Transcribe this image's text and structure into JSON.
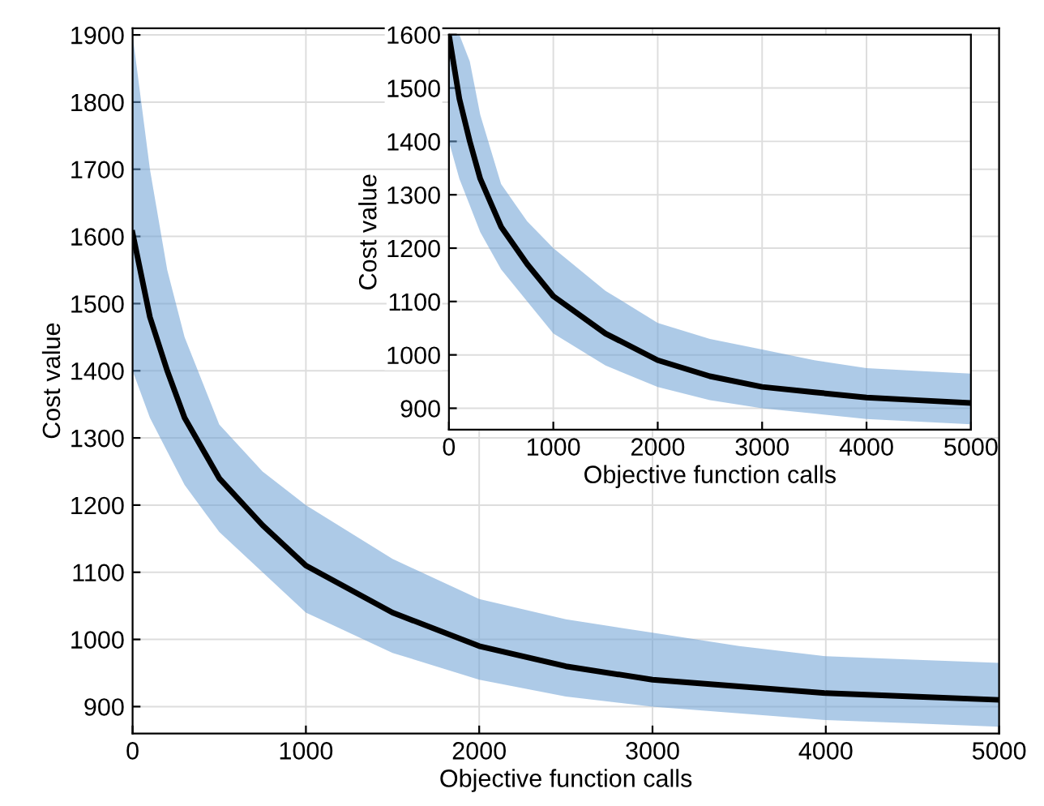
{
  "chart_data": [
    {
      "type": "line",
      "xlabel": "Objective function calls",
      "ylabel": "Cost value",
      "xlim": [
        0,
        5000
      ],
      "xticks": [
        0,
        1000,
        2000,
        3000,
        4000,
        5000
      ],
      "ylim": [
        860,
        1910
      ],
      "yticks": [
        900,
        1000,
        1100,
        1200,
        1300,
        1400,
        1500,
        1600,
        1700,
        1800,
        1900
      ],
      "grid": true,
      "x": [
        0,
        100,
        200,
        300,
        500,
        750,
        1000,
        1500,
        2000,
        2500,
        3000,
        3500,
        4000,
        4500,
        5000
      ],
      "series": [
        {
          "color": "#000000",
          "values": [
            1605,
            1480,
            1400,
            1330,
            1240,
            1170,
            1110,
            1040,
            990,
            960,
            940,
            930,
            920,
            915,
            910
          ],
          "lower": [
            1400,
            1330,
            1280,
            1230,
            1160,
            1100,
            1040,
            980,
            940,
            915,
            900,
            890,
            880,
            875,
            870
          ],
          "upper": [
            1900,
            1700,
            1550,
            1450,
            1320,
            1250,
            1200,
            1120,
            1060,
            1030,
            1010,
            990,
            975,
            970,
            965
          ]
        }
      ]
    },
    {
      "type": "line",
      "xlabel": "Objective function calls",
      "ylabel": "Cost value",
      "xlim": [
        0,
        5000
      ],
      "xticks": [
        0,
        1000,
        2000,
        3000,
        4000,
        5000
      ],
      "ylim": [
        860,
        1600
      ],
      "yticks": [
        900,
        1000,
        1100,
        1200,
        1300,
        1400,
        1500,
        1600
      ],
      "grid": true,
      "x": [
        0,
        100,
        200,
        300,
        500,
        750,
        1000,
        1500,
        2000,
        2500,
        3000,
        3500,
        4000,
        4500,
        5000
      ],
      "series": [
        {
          "color": "#000000",
          "values": [
            1600,
            1480,
            1400,
            1330,
            1240,
            1170,
            1110,
            1040,
            990,
            960,
            940,
            930,
            920,
            915,
            910
          ],
          "lower": [
            1400,
            1330,
            1280,
            1230,
            1160,
            1100,
            1040,
            980,
            940,
            915,
            900,
            890,
            880,
            875,
            870
          ],
          "upper": [
            1600,
            1600,
            1550,
            1450,
            1320,
            1250,
            1200,
            1120,
            1060,
            1030,
            1010,
            990,
            975,
            970,
            965
          ]
        }
      ]
    }
  ]
}
